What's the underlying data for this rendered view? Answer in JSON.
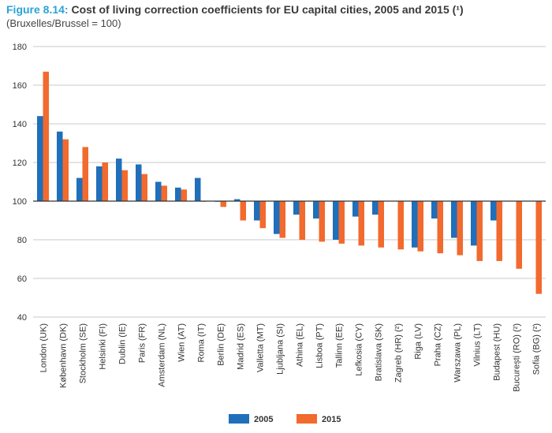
{
  "figure": {
    "number": "Figure 8.14:",
    "title": "Cost of living correction coefficients for EU capital cities, 2005 and 2015 (¹)",
    "subtitle": "(Bruxelles/Brussel = 100)"
  },
  "colors": {
    "series_2005": "#1f6fba",
    "series_2015": "#f26a2e",
    "grid": "#c8c8c8",
    "axis": "#333333"
  },
  "chart_data": {
    "type": "bar",
    "baseline": 100,
    "ylim": [
      40,
      180
    ],
    "yticks": [
      40,
      60,
      80,
      100,
      120,
      140,
      160,
      180
    ],
    "grid": true,
    "legend_position": "bottom",
    "categories": [
      "London (UK)",
      "København (DK)",
      "Stockholm (SE)",
      "Helsinki (FI)",
      "Dublin (IE)",
      "Paris (FR)",
      "Amsterdam (NL)",
      "Wien (AT)",
      "Roma (IT)",
      "Berlin (DE)",
      "Madrid (ES)",
      "Valletta (MT)",
      "Ljubljana (SI)",
      "Athina (EL)",
      "Lisboa (PT)",
      "Tallinn (EE)",
      "Lefkosia (CY)",
      "Bratislava (SK)",
      "Zagreb (HR) (²)",
      "Riga (LV)",
      "Praha (CZ)",
      "Warszawa (PL)",
      "Vilnius (LT)",
      "Budapest (HU)",
      "București (RO) (²)",
      "Sofia (BG) (²)"
    ],
    "series": [
      {
        "name": "2005",
        "values": [
          144,
          136,
          112,
          118,
          122,
          119,
          110,
          107,
          112,
          100,
          101,
          90,
          83,
          93,
          91,
          80,
          92,
          93,
          null,
          76,
          91,
          81,
          77,
          90,
          null,
          null
        ]
      },
      {
        "name": "2015",
        "values": [
          167,
          132,
          128,
          120,
          116,
          114,
          108,
          106,
          100,
          97,
          90,
          86,
          81,
          80,
          79,
          78,
          77,
          76,
          75,
          74,
          73,
          72,
          69,
          69,
          65,
          52
        ]
      }
    ]
  }
}
